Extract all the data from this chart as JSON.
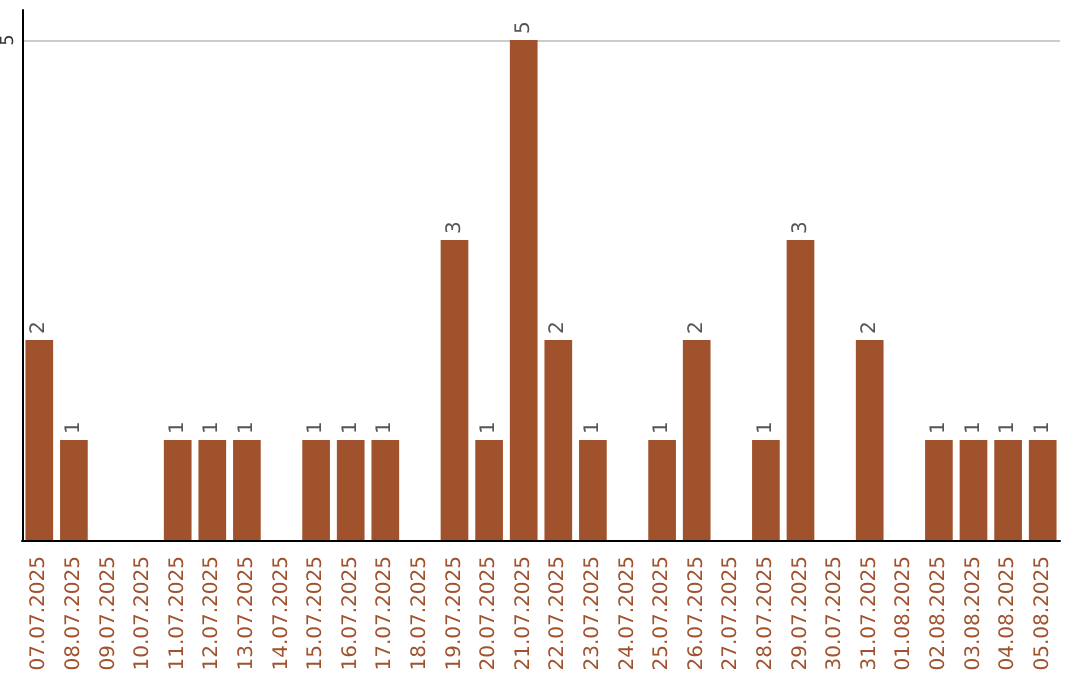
{
  "chart_data": {
    "type": "bar",
    "categories": [
      "07.07.2025",
      "08.07.2025",
      "09.07.2025",
      "10.07.2025",
      "11.07.2025",
      "12.07.2025",
      "13.07.2025",
      "14.07.2025",
      "15.07.2025",
      "16.07.2025",
      "17.07.2025",
      "18.07.2025",
      "19.07.2025",
      "20.07.2025",
      "21.07.2025",
      "22.07.2025",
      "23.07.2025",
      "24.07.2025",
      "25.07.2025",
      "26.07.2025",
      "27.07.2025",
      "28.07.2025",
      "29.07.2025",
      "30.07.2025",
      "31.07.2025",
      "01.08.2025",
      "02.08.2025",
      "03.08.2025",
      "04.08.2025",
      "05.08.2025"
    ],
    "values": [
      2,
      1,
      0,
      0,
      1,
      1,
      1,
      0,
      1,
      1,
      1,
      0,
      3,
      1,
      5,
      2,
      1,
      0,
      1,
      2,
      0,
      1,
      3,
      0,
      2,
      0,
      1,
      1,
      1,
      1
    ],
    "value_labels": [
      "2",
      "1",
      null,
      null,
      "1",
      "1",
      "1",
      null,
      "1",
      "1",
      "1",
      null,
      "3",
      "1",
      "5",
      "2",
      "1",
      null,
      "1",
      "2",
      null,
      "1",
      "3",
      null,
      "2",
      null,
      "1",
      "1",
      "1",
      "1"
    ],
    "color": "#a0522d",
    "ylim": [
      0,
      5.3
    ],
    "yticks": [
      5
    ],
    "grid": "y"
  }
}
